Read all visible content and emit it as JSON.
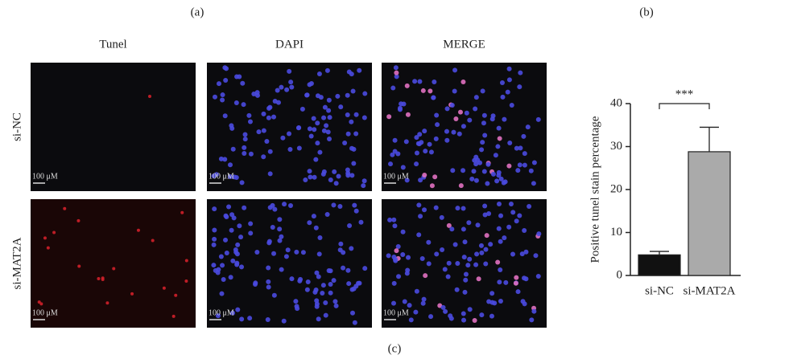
{
  "figure": {
    "panel_a": "(a)",
    "panel_b": "(b)",
    "panel_c": "(c)",
    "columns": [
      "Tunel",
      "DAPI",
      "MERGE"
    ],
    "rows": [
      "si-NC",
      "si-MAT2A"
    ],
    "scale_bar": "100 μM"
  },
  "chart_data": {
    "type": "bar",
    "ylabel": "Positive tunel stain percentage",
    "categories": [
      "si-NC",
      "si-MAT2A"
    ],
    "values": [
      4.8,
      28.8
    ],
    "errors": [
      0.8,
      5.7
    ],
    "colors": [
      "#111111",
      "#aaaaaa"
    ],
    "annotation": "***",
    "ylim": [
      0,
      40
    ],
    "yticks": [
      0,
      10,
      20,
      30,
      40
    ],
    "grid": false
  }
}
